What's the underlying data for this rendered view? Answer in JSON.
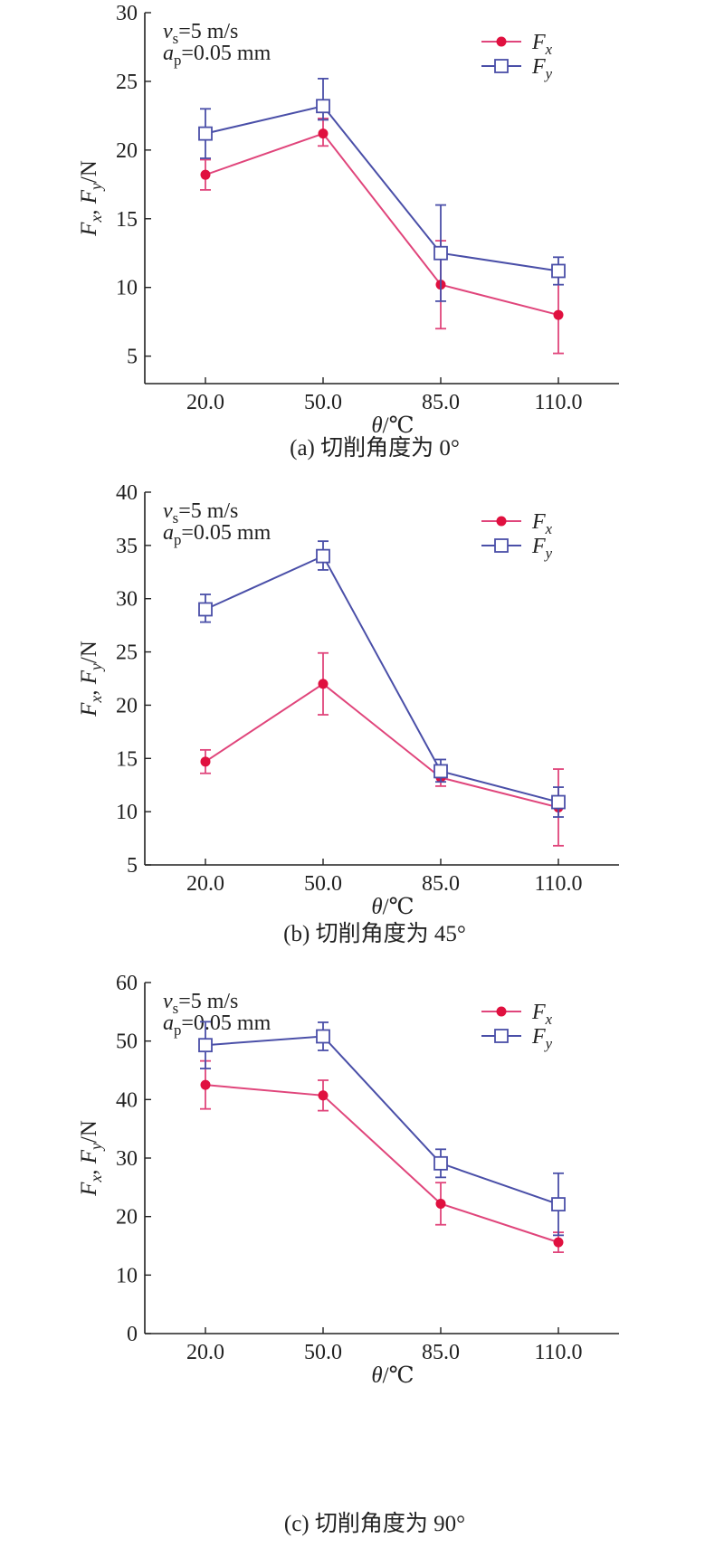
{
  "colors": {
    "fx": "#E0457B",
    "fx_marker": "#E0103F",
    "fy": "#4A4FA8",
    "axis": "#222222"
  },
  "chart_data": [
    {
      "type": "line",
      "caption": "(a) 切削角度为 0°",
      "xlabel": "θ/℃",
      "ylabel": "Fx, Fy/N",
      "annotation": [
        "vs=5 m/s",
        "ap=0.05 mm"
      ],
      "legend_position": "top-right",
      "categories": [
        "20.0",
        "50.0",
        "85.0",
        "110.0"
      ],
      "ylim": [
        3,
        30
      ],
      "yticks": [
        5,
        10,
        15,
        20,
        25,
        30
      ],
      "series": [
        {
          "name": "Fx",
          "marker": "filled-circle",
          "values": [
            18.2,
            21.2,
            10.2,
            8.0
          ],
          "error_low": [
            1.1,
            0.9,
            3.2,
            2.8
          ],
          "error_high": [
            1.1,
            1.1,
            3.2,
            2.8
          ]
        },
        {
          "name": "Fy",
          "marker": "open-square",
          "values": [
            21.2,
            23.2,
            12.5,
            11.2
          ],
          "error_low": [
            1.8,
            1.0,
            3.5,
            1.0
          ],
          "error_high": [
            1.8,
            2.0,
            3.5,
            1.0
          ]
        }
      ]
    },
    {
      "type": "line",
      "caption": "(b) 切削角度为 45°",
      "xlabel": "θ/℃",
      "ylabel": "Fx, Fy/N",
      "annotation": [
        "vs=5 m/s",
        "ap=0.05 mm"
      ],
      "legend_position": "top-right",
      "categories": [
        "20.0",
        "50.0",
        "85.0",
        "110.0"
      ],
      "ylim": [
        5,
        40
      ],
      "yticks": [
        5,
        10,
        15,
        20,
        25,
        30,
        35,
        40
      ],
      "series": [
        {
          "name": "Fx",
          "marker": "filled-circle",
          "values": [
            14.7,
            22.0,
            13.2,
            10.4
          ],
          "error_low": [
            1.1,
            2.9,
            0.8,
            3.6
          ],
          "error_high": [
            1.1,
            2.9,
            0.8,
            3.6
          ]
        },
        {
          "name": "Fy",
          "marker": "open-square",
          "values": [
            29.0,
            34.0,
            13.8,
            10.9
          ],
          "error_low": [
            1.2,
            1.3,
            1.0,
            1.4
          ],
          "error_high": [
            1.4,
            1.4,
            1.1,
            1.4
          ]
        }
      ]
    },
    {
      "type": "line",
      "caption": "(c) 切削角度为 90°",
      "xlabel": "θ/℃",
      "ylabel": "Fx, Fy/N",
      "annotation": [
        "vs=5 m/s",
        "ap=0.05 mm"
      ],
      "legend_position": "top-right",
      "categories": [
        "20.0",
        "50.0",
        "85.0",
        "110.0"
      ],
      "ylim": [
        0,
        60
      ],
      "yticks": [
        0,
        10,
        20,
        30,
        40,
        50,
        60
      ],
      "series": [
        {
          "name": "Fx",
          "marker": "filled-circle",
          "values": [
            42.5,
            40.7,
            22.2,
            15.6
          ],
          "error_low": [
            4.1,
            2.6,
            3.6,
            1.7
          ],
          "error_high": [
            4.1,
            2.6,
            3.6,
            1.7
          ]
        },
        {
          "name": "Fy",
          "marker": "open-square",
          "values": [
            49.3,
            50.8,
            29.1,
            22.1
          ],
          "error_low": [
            4.0,
            2.4,
            2.4,
            5.3
          ],
          "error_high": [
            4.0,
            2.4,
            2.4,
            5.3
          ]
        }
      ]
    }
  ]
}
